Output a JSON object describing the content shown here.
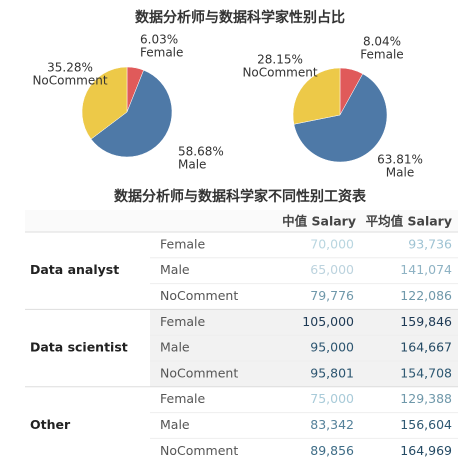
{
  "title": "数据分析师与数据科学家性别占比",
  "chart_data": [
    {
      "type": "pie",
      "categories": [
        "Female",
        "Male",
        "NoComment"
      ],
      "values": [
        6.03,
        58.68,
        35.28
      ],
      "value_labels": [
        "6.03%",
        "58.68%",
        "35.28%"
      ],
      "colors": [
        "#e05a5a",
        "#4e79a7",
        "#edc948"
      ]
    },
    {
      "type": "pie",
      "categories": [
        "Female",
        "Male",
        "NoComment"
      ],
      "values": [
        8.04,
        63.81,
        28.15
      ],
      "value_labels": [
        "8.04%",
        "63.81%",
        "28.15%"
      ],
      "colors": [
        "#e05a5a",
        "#4e79a7",
        "#edc948"
      ]
    }
  ],
  "table": {
    "title": "数据分析师与数据科学家不同性别工资表",
    "columns": [
      "中值 Salary",
      "平均值 Salary"
    ],
    "groups": [
      {
        "name": "Data analyst",
        "rows": [
          [
            "Female",
            "70,000",
            "93,736"
          ],
          [
            "Male",
            "65,000",
            "141,074"
          ],
          [
            "NoComment",
            "79,776",
            "122,086"
          ]
        ]
      },
      {
        "name": "Data scientist",
        "rows": [
          [
            "Female",
            "105,000",
            "159,846"
          ],
          [
            "Male",
            "95,000",
            "164,667"
          ],
          [
            "NoComment",
            "95,801",
            "154,708"
          ]
        ]
      },
      {
        "name": "Other",
        "rows": [
          [
            "Female",
            "75,000",
            "129,388"
          ],
          [
            "Male",
            "83,342",
            "156,604"
          ],
          [
            "NoComment",
            "89,856",
            "164,969"
          ]
        ]
      }
    ]
  }
}
